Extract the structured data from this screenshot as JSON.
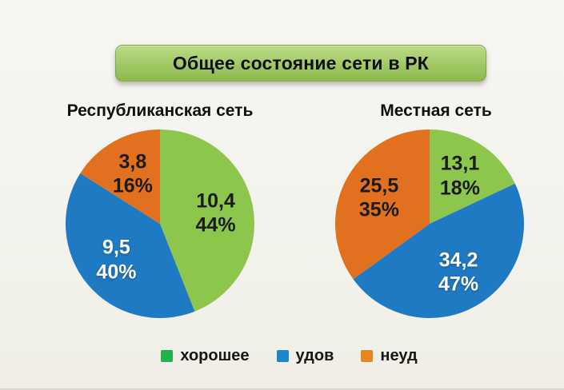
{
  "page": {
    "background_top": "#f7f6f1",
    "background_bottom": "#efeee6",
    "bottom_line_color": "#d9d6ca"
  },
  "header": {
    "title": "Общее состояние сети в РК",
    "banner_color_top": "#bcda86",
    "banner_color_bottom": "#8cb84d",
    "text_color": "#0e0e0e"
  },
  "legend": {
    "position": "bottom",
    "items": [
      {
        "key": "good",
        "label": "хорошее",
        "color": "#22b14c"
      },
      {
        "key": "satisfactory",
        "label": "удов",
        "color": "#1d87c9"
      },
      {
        "key": "unsatisfactory",
        "label": "неуд",
        "color": "#e8851f"
      }
    ]
  },
  "chart_data": [
    {
      "type": "pie",
      "title": "Республиканская сеть",
      "legend_position": "bottom",
      "legend_labels": [
        "хорошее",
        "удов",
        "неуд"
      ],
      "start_angle": "top, clockwise",
      "slices": [
        {
          "key": "good",
          "legend_label": "хорошее",
          "value": 10.4,
          "value_label": "10,4",
          "percent": 44,
          "percent_label": "44%",
          "color": "#8dc64d",
          "label_color": "#1c1c1c"
        },
        {
          "key": "satisfactory",
          "legend_label": "удов",
          "value": 9.5,
          "value_label": "9,5",
          "percent": 40,
          "percent_label": "40%",
          "color": "#1f7ac4",
          "label_color": "#ffffff"
        },
        {
          "key": "unsatisfactory",
          "legend_label": "неуд",
          "value": 3.8,
          "value_label": "3,8",
          "percent": 16,
          "percent_label": "16%",
          "color": "#e2711f",
          "label_color": "#1c1c1c"
        }
      ]
    },
    {
      "type": "pie",
      "title": "Местная сеть",
      "legend_position": "bottom",
      "legend_labels": [
        "хорошее",
        "удов",
        "неуд"
      ],
      "start_angle": "top, clockwise",
      "slices": [
        {
          "key": "good",
          "legend_label": "хорошее",
          "value": 13.1,
          "value_label": "13,1",
          "percent": 18,
          "percent_label": "18%",
          "color": "#8dc64d",
          "label_color": "#1c1c1c"
        },
        {
          "key": "satisfactory",
          "legend_label": "удов",
          "value": 34.2,
          "value_label": "34,2",
          "percent": 47,
          "percent_label": "47%",
          "color": "#1f7ac4",
          "label_color": "#ffffff"
        },
        {
          "key": "unsatisfactory",
          "legend_label": "неуд",
          "value": 25.5,
          "value_label": "25,5",
          "percent": 35,
          "percent_label": "35%",
          "color": "#e2711f",
          "label_color": "#1c1c1c"
        }
      ]
    }
  ]
}
